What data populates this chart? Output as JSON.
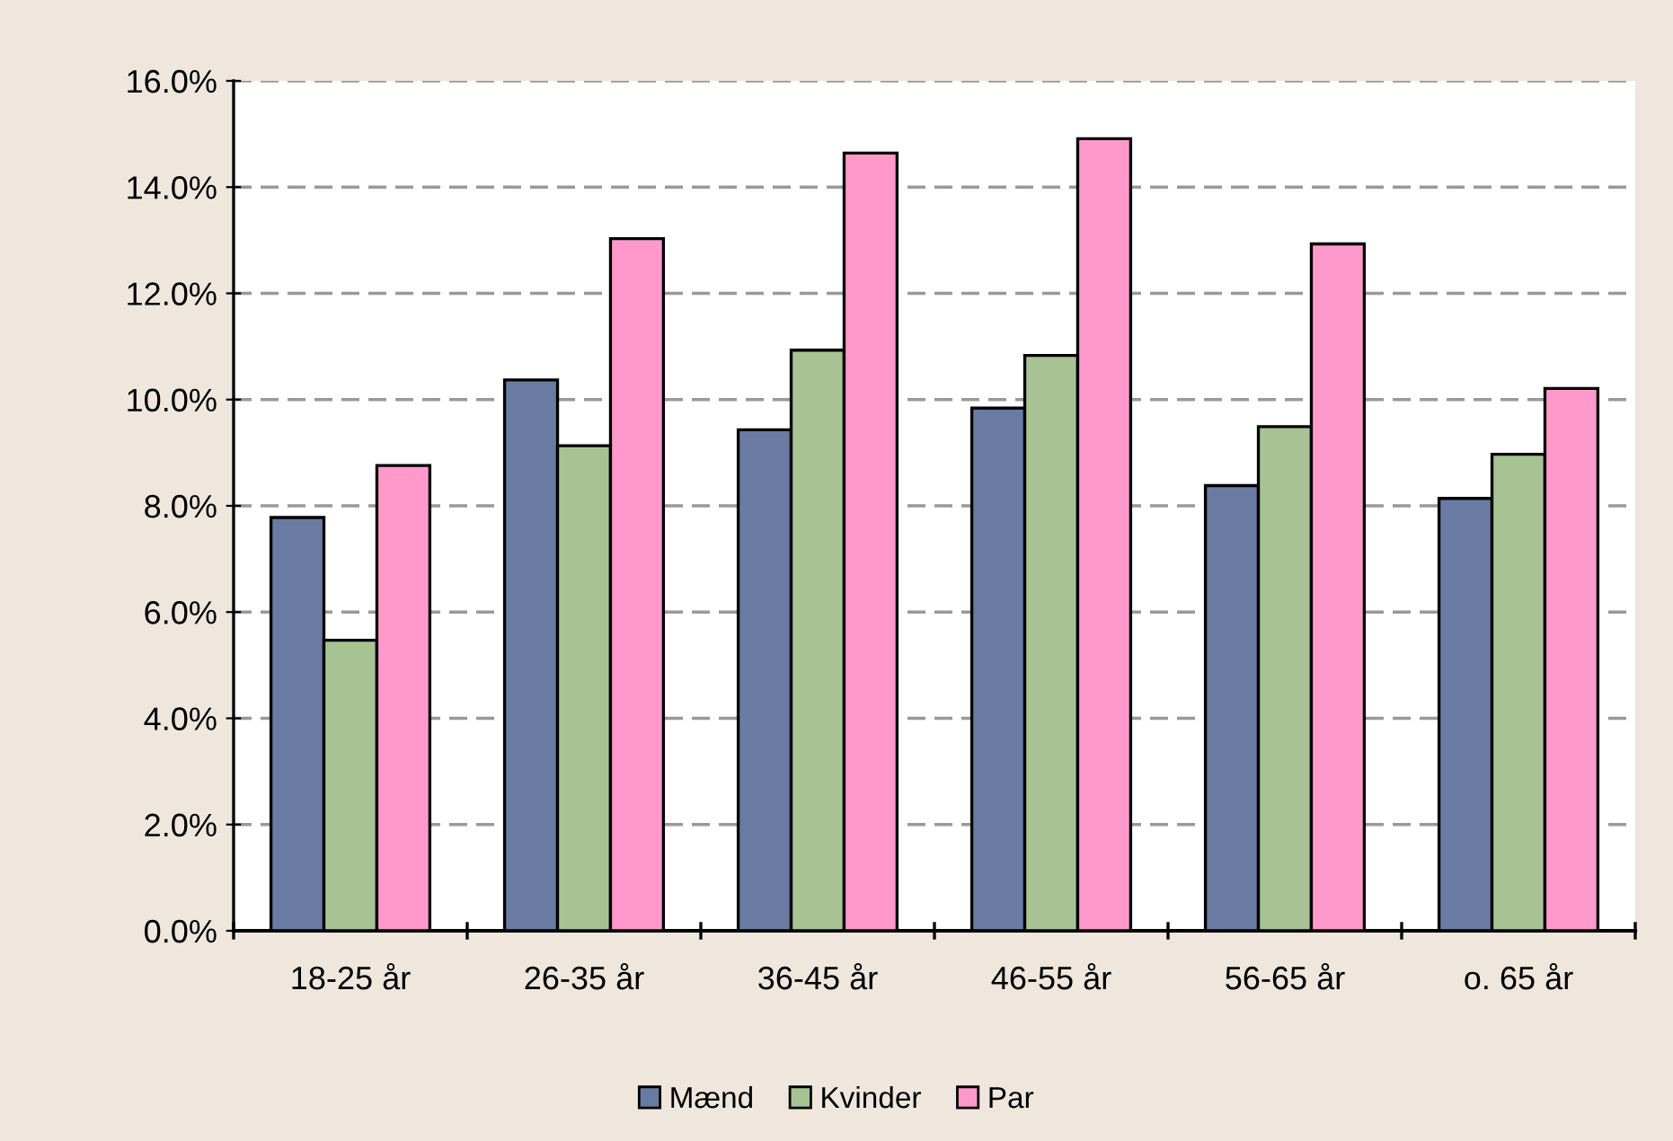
{
  "chart_data": {
    "type": "bar",
    "categories": [
      "18-25 år",
      "26-35 år",
      "36-45 år",
      "46-55 år",
      "56-65 år",
      "o. 65 år"
    ],
    "series": [
      {
        "name": "Mænd",
        "color": "#6a7ba3",
        "values": [
          7.78,
          10.37,
          9.43,
          9.84,
          8.38,
          8.14
        ]
      },
      {
        "name": "Kvinder",
        "color": "#a7c394",
        "values": [
          5.47,
          9.13,
          10.93,
          10.83,
          9.49,
          8.97
        ]
      },
      {
        "name": "Par",
        "color": "#ff99cc",
        "values": [
          8.76,
          13.03,
          14.64,
          14.91,
          12.93,
          10.21
        ]
      }
    ],
    "ylim": [
      0,
      16
    ],
    "yticks": [
      {
        "value": 0,
        "label": "0.0%"
      },
      {
        "value": 2,
        "label": "2.0%"
      },
      {
        "value": 4,
        "label": "4.0%"
      },
      {
        "value": 6,
        "label": "6.0%"
      },
      {
        "value": 8,
        "label": "8.0%"
      },
      {
        "value": 10,
        "label": "10.0%"
      },
      {
        "value": 12,
        "label": "12.0%"
      },
      {
        "value": 14,
        "label": "14.0%"
      },
      {
        "value": 16,
        "label": "16.0%"
      }
    ],
    "grid": "y",
    "legend": "bottom"
  }
}
